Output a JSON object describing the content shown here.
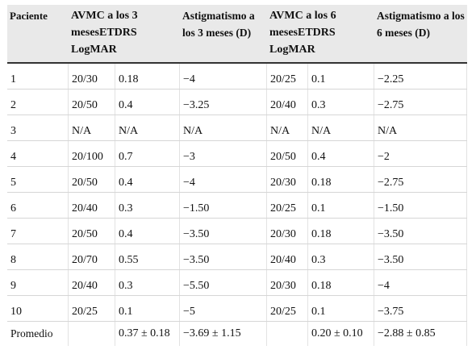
{
  "table": {
    "headers": {
      "patient": "Paciente",
      "avmc3": "AVMC a los 3 mesesETDRS LogMAR",
      "astig3": "Astigmatismo a los 3 meses (D)",
      "avmc6": "AVMC a los 6 mesesETDRS LogMAR",
      "astig6": "Astigmatismo a los 6 meses (D)"
    },
    "rows": [
      [
        "1",
        "20/30",
        "0.18",
        "−4",
        "20/25",
        "0.1",
        "−2.25"
      ],
      [
        "2",
        "20/50",
        "0.4",
        "−3.25",
        "20/40",
        "0.3",
        "−2.75"
      ],
      [
        "3",
        "N/A",
        "N/A",
        "N/A",
        "N/A",
        "N/A",
        "N/A"
      ],
      [
        "4",
        "20/100",
        "0.7",
        "−3",
        "20/50",
        "0.4",
        "−2"
      ],
      [
        "5",
        "20/50",
        "0.4",
        "−4",
        "20/30",
        "0.18",
        "−2.75"
      ],
      [
        "6",
        "20/40",
        "0.3",
        "−1.50",
        "20/25",
        "0.1",
        "−1.50"
      ],
      [
        "7",
        "20/50",
        "0.4",
        "−3.50",
        "20/30",
        "0.18",
        "−3.50"
      ],
      [
        "8",
        "20/70",
        "0.55",
        "−3.50",
        "20/40",
        "0.3",
        "−3.50"
      ],
      [
        "9",
        "20/40",
        "0.3",
        "−5.50",
        "20/30",
        "0.18",
        "−4"
      ],
      [
        "10",
        "20/25",
        "0.1",
        "−5",
        "20/25",
        "0.1",
        "−3.75"
      ]
    ],
    "average": {
      "label": "Promedio",
      "avmc3_snellen": "",
      "avmc3_logmar": "0.37 ± 0.18",
      "astig3": "−3.69 ± 1.15",
      "avmc6_snellen": "",
      "avmc6_logmar": "0.20 ± 0.10",
      "astig6": "−2.88 ± 0.85"
    }
  }
}
